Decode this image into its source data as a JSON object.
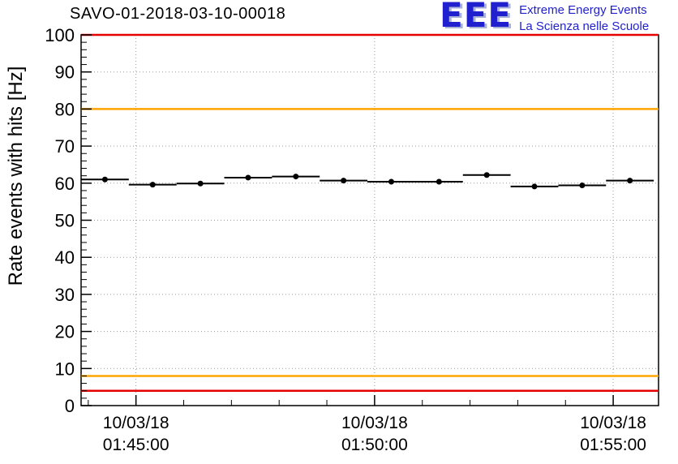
{
  "logo": {
    "text": "EEE",
    "line1": "Extreme Energy Events",
    "line2": "La Scienza nelle Scuole",
    "accent_color": "#2222cc"
  },
  "chart_data": {
    "type": "scatter",
    "title": "SAVO-01-2018-03-10-00018",
    "ylabel": "Rate events with hits [Hz]",
    "xlabel": "",
    "x_unit": "minutes after 01:00:00 on 10/03/18",
    "xlim": [
      43.85,
      55.95
    ],
    "ylim": [
      0,
      100
    ],
    "grid": true,
    "y_ticks": [
      0,
      10,
      20,
      30,
      40,
      50,
      60,
      70,
      80,
      90,
      100
    ],
    "y_minor_step": 2,
    "x_minor_step": 1,
    "x_ticks": [
      {
        "value": 45,
        "label_date": "10/03/18",
        "label_time": "01:45:00"
      },
      {
        "value": 50,
        "label_date": "10/03/18",
        "label_time": "01:50:00"
      },
      {
        "value": 55,
        "label_date": "10/03/18",
        "label_time": "01:55:00"
      }
    ],
    "threshold_lines": [
      {
        "name": "upper-alarm",
        "y": 100,
        "color": "#e60000"
      },
      {
        "name": "upper-warning",
        "y": 80,
        "color": "#ffa500"
      },
      {
        "name": "lower-warning",
        "y": 8,
        "color": "#ffa500"
      },
      {
        "name": "lower-alarm",
        "y": 4,
        "color": "#e60000"
      }
    ],
    "series": [
      {
        "name": "rate-events-with-hits",
        "color": "#000000",
        "points": [
          {
            "x": 44.35,
            "y": 61.0,
            "xerr": 0.5,
            "yerr": 0.5
          },
          {
            "x": 45.35,
            "y": 59.6,
            "xerr": 0.5,
            "yerr": 0.5
          },
          {
            "x": 46.35,
            "y": 59.9,
            "xerr": 0.5,
            "yerr": 0.5
          },
          {
            "x": 47.35,
            "y": 61.5,
            "xerr": 0.5,
            "yerr": 0.5
          },
          {
            "x": 48.35,
            "y": 61.8,
            "xerr": 0.5,
            "yerr": 0.5
          },
          {
            "x": 49.35,
            "y": 60.7,
            "xerr": 0.5,
            "yerr": 0.5
          },
          {
            "x": 50.35,
            "y": 60.4,
            "xerr": 0.5,
            "yerr": 0.5
          },
          {
            "x": 51.35,
            "y": 60.4,
            "xerr": 0.5,
            "yerr": 0.5
          },
          {
            "x": 52.35,
            "y": 62.2,
            "xerr": 0.5,
            "yerr": 0.5
          },
          {
            "x": 53.35,
            "y": 59.1,
            "xerr": 0.5,
            "yerr": 0.5
          },
          {
            "x": 54.35,
            "y": 59.4,
            "xerr": 0.5,
            "yerr": 0.5
          },
          {
            "x": 55.35,
            "y": 60.7,
            "xerr": 0.5,
            "yerr": 0.5
          }
        ]
      }
    ]
  }
}
